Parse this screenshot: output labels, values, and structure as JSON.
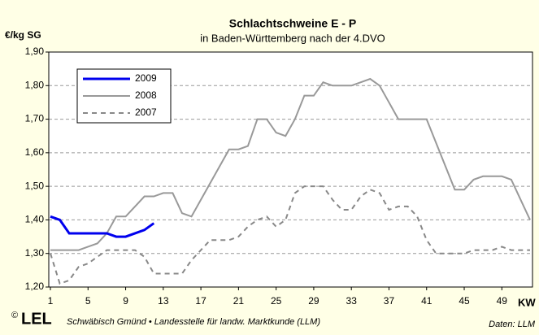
{
  "chart_data": {
    "type": "line",
    "title": "Schlachtschweine E - P",
    "subtitle": "in Baden-Württemberg nach der 4.DVO",
    "y_label": "€/kg SG",
    "x_label": "KW",
    "footer": "Schwäbisch Gmünd • Landesstelle für landw. Marktkunde (LLM)",
    "logo": "LEL",
    "source": "Daten: LLM",
    "x": [
      1,
      2,
      3,
      4,
      5,
      6,
      7,
      8,
      9,
      10,
      11,
      12,
      13,
      14,
      15,
      16,
      17,
      18,
      19,
      20,
      21,
      22,
      23,
      24,
      25,
      26,
      27,
      28,
      29,
      30,
      31,
      32,
      33,
      34,
      35,
      36,
      37,
      38,
      39,
      40,
      41,
      42,
      43,
      44,
      45,
      46,
      47,
      48,
      49,
      50,
      51,
      52
    ],
    "xlim": [
      1,
      52
    ],
    "xticks": [
      1,
      5,
      9,
      13,
      17,
      21,
      25,
      29,
      33,
      37,
      41,
      45,
      49
    ],
    "ylim": [
      1.2,
      1.9
    ],
    "yticks": [
      {
        "value": 1.2,
        "label": "1,20"
      },
      {
        "value": 1.3,
        "label": "1,30"
      },
      {
        "value": 1.4,
        "label": "1,40"
      },
      {
        "value": 1.5,
        "label": "1,50"
      },
      {
        "value": 1.6,
        "label": "1,60"
      },
      {
        "value": 1.7,
        "label": "1,70"
      },
      {
        "value": 1.8,
        "label": "1,80"
      },
      {
        "value": 1.9,
        "label": "1,90"
      }
    ],
    "grid": true,
    "legend": "upper left",
    "series": [
      {
        "name": "2009",
        "color": "#0000ee",
        "style": "solid",
        "values": [
          1.41,
          1.4,
          1.36,
          1.36,
          1.36,
          1.36,
          1.36,
          1.35,
          1.35,
          1.36,
          1.37,
          1.39,
          null,
          null,
          null,
          null,
          null,
          null,
          null,
          null,
          null,
          null,
          null,
          null,
          null,
          null,
          null,
          null,
          null,
          null,
          null,
          null,
          null,
          null,
          null,
          null,
          null,
          null,
          null,
          null,
          null,
          null,
          null,
          null,
          null,
          null,
          null,
          null,
          null,
          null,
          null,
          null
        ]
      },
      {
        "name": "2008",
        "color": "#999999",
        "style": "solid",
        "values": [
          1.31,
          1.31,
          1.31,
          1.31,
          1.32,
          1.33,
          1.36,
          1.41,
          1.41,
          1.44,
          1.47,
          1.47,
          1.48,
          1.48,
          1.42,
          1.41,
          1.46,
          1.51,
          1.56,
          1.61,
          1.61,
          1.62,
          1.7,
          1.7,
          1.66,
          1.65,
          1.7,
          1.77,
          1.77,
          1.81,
          1.8,
          1.8,
          1.8,
          1.81,
          1.82,
          1.8,
          1.75,
          1.7,
          1.7,
          1.7,
          1.7,
          1.63,
          1.56,
          1.49,
          1.49,
          1.52,
          1.53,
          1.53,
          1.53,
          1.52,
          1.46,
          1.4
        ]
      },
      {
        "name": "2007",
        "color": "#888888",
        "style": "dashed",
        "values": [
          1.3,
          1.21,
          1.22,
          1.26,
          1.27,
          1.29,
          1.31,
          1.31,
          1.31,
          1.31,
          1.29,
          1.24,
          1.24,
          1.24,
          1.24,
          1.28,
          1.31,
          1.34,
          1.34,
          1.34,
          1.35,
          1.38,
          1.4,
          1.41,
          1.38,
          1.4,
          1.48,
          1.5,
          1.5,
          1.5,
          1.46,
          1.43,
          1.43,
          1.47,
          1.49,
          1.48,
          1.43,
          1.44,
          1.44,
          1.41,
          1.34,
          1.3,
          1.3,
          1.3,
          1.3,
          1.31,
          1.31,
          1.31,
          1.32,
          1.31,
          1.31,
          1.31
        ]
      }
    ]
  }
}
